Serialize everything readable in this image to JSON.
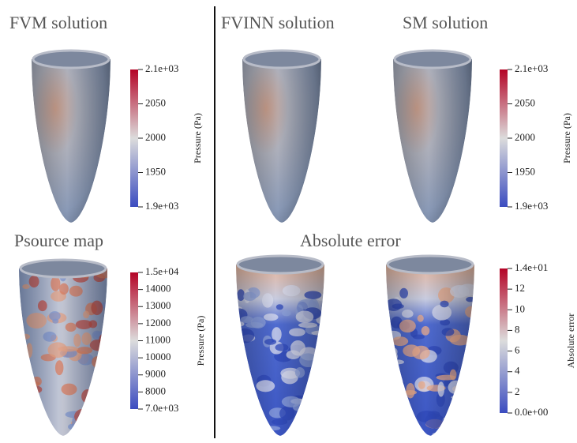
{
  "panels": [
    {
      "title": "FVM solution"
    },
    {
      "title": "FVINN solution"
    },
    {
      "title": "SM solution"
    },
    {
      "title": "Psource map"
    },
    {
      "title": "Absolute error"
    }
  ],
  "colormap": [
    "#3b4cc0",
    "#dcdcdc",
    "#b40426"
  ],
  "colorbars": [
    {
      "label": "Pressure (Pa)",
      "range": [
        1900,
        2100
      ],
      "ticks": [
        {
          "value": 1900,
          "label": "1.9e+03"
        },
        1950,
        2000,
        2050,
        {
          "value": 2100,
          "label": "2.1e+03"
        }
      ]
    },
    {
      "label": "Pressure (Pa)",
      "range": [
        1900,
        2100
      ],
      "ticks": [
        {
          "value": 1900,
          "label": "1.9e+03"
        },
        1950,
        2000,
        2050,
        {
          "value": 2100,
          "label": "2.1e+03"
        }
      ]
    },
    {
      "label": "Pressure (Pa)",
      "range": [
        7000,
        15000
      ],
      "ticks": [
        {
          "value": 7000,
          "label": "7.0e+03"
        },
        8000,
        9000,
        10000,
        11000,
        12000,
        13000,
        14000,
        {
          "value": 15000,
          "label": "1.5e+04"
        }
      ]
    },
    {
      "label": "Absolute error",
      "range": [
        0,
        14
      ],
      "ticks": [
        {
          "value": 0,
          "label": "0.0e+00"
        },
        2,
        4,
        6,
        8,
        10,
        12,
        {
          "value": 14,
          "label": "1.4e+01"
        }
      ]
    }
  ]
}
